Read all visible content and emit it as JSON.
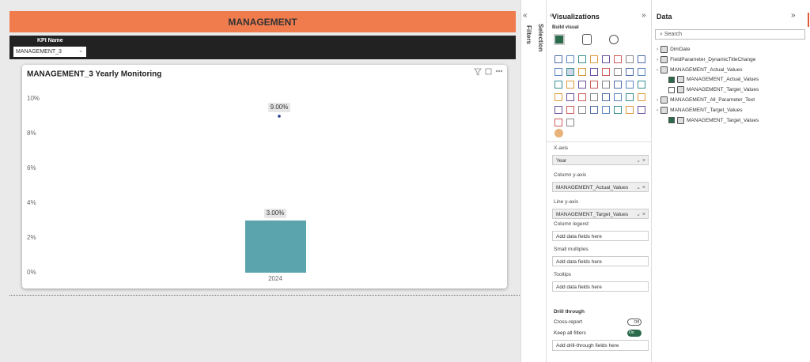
{
  "header": {
    "title": "MANAGEMENT"
  },
  "slicer": {
    "label": "KPI Name",
    "selected": "MANAGEMENT_3"
  },
  "visual": {
    "type": "combo",
    "title": "MANAGEMENT_3 Yearly Monitoring",
    "categories": [
      "2024"
    ],
    "series": [
      {
        "kind": "column",
        "color": "#5ba3ad",
        "values": [
          3
        ],
        "value_labels": [
          "3.00%"
        ]
      },
      {
        "kind": "line",
        "color": "#1f3b8c",
        "values": [
          9
        ],
        "value_labels": [
          "9.00%"
        ]
      }
    ],
    "ylim": [
      0,
      10
    ],
    "yticks": [
      {
        "value": 0,
        "label": "0%"
      },
      {
        "value": 2,
        "label": "2%"
      },
      {
        "value": 4,
        "label": "4%"
      },
      {
        "value": 6,
        "label": "6%"
      },
      {
        "value": 8,
        "label": "8%"
      },
      {
        "value": 10,
        "label": "10%"
      }
    ]
  },
  "side": {
    "filters": "Filters",
    "selection": "Selection"
  },
  "visualizations": {
    "title": "Visualizations",
    "build_visual": "Build visual",
    "wells": [
      {
        "label": "X-axis",
        "field": "Year",
        "removable": true
      },
      {
        "label": "Column y-axis",
        "field": "MANAGEMENT_Actual_Values",
        "removable": true
      },
      {
        "label": "Line y-axis",
        "field": "MANAGEMENT_Target_Values",
        "removable": true
      },
      {
        "label": "Column legend",
        "field": "Add data fields here",
        "removable": false
      },
      {
        "label": "Small multiples",
        "field": "Add data fields here",
        "removable": false
      },
      {
        "label": "Tooltips",
        "field": "Add data fields here",
        "removable": false
      }
    ],
    "drill": {
      "title": "Drill through",
      "cross_report": "Cross-report",
      "cross_state": "Off",
      "keep_filters": "Keep all filters",
      "keep_state": "On",
      "add": "Add drill-through fields here"
    }
  },
  "data_pane": {
    "title": "Data",
    "search": "Search",
    "tree": [
      {
        "label": "DimDate",
        "level": 0
      },
      {
        "label": "FieldParameter_DynamicTitleChange",
        "level": 0
      },
      {
        "label": "MANAGEMENT_Actual_Values",
        "level": 0
      },
      {
        "label": "MANAGEMENT_Actual_Values",
        "level": 1,
        "checked": true
      },
      {
        "label": "MANAGEMENT_Target_Values",
        "level": 1,
        "checked": false
      },
      {
        "label": "MANAGEMENT_All_Parameter_Text",
        "level": 0
      },
      {
        "label": "MANAGEMENT_Target_Values",
        "level": 0
      },
      {
        "label": "MANAGEMENT_Target_Values",
        "level": 1,
        "checked": true
      }
    ]
  }
}
